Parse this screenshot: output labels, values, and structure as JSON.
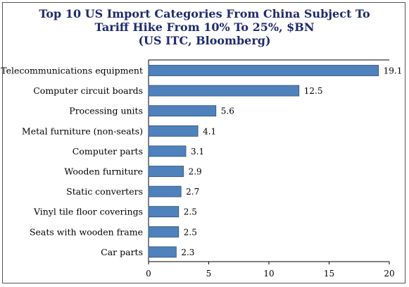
{
  "chart_data": {
    "type": "bar",
    "orientation": "horizontal",
    "title_lines": [
      "Top 10 US Import Categories From China Subject To",
      "Tariff Hike From 10% To 25%, $BN",
      "(US ITC, Bloomberg)"
    ],
    "categories": [
      "Telecommunications equipment",
      "Computer circuit boards",
      "Processing units",
      "Metal furniture (non-seats)",
      "Computer parts",
      "Wooden furniture",
      "Static converters",
      "Vinyl tile floor coverings",
      "Seats with wooden frame",
      "Car parts"
    ],
    "values": [
      19.1,
      12.5,
      5.6,
      4.1,
      3.1,
      2.9,
      2.7,
      2.5,
      2.5,
      2.3
    ],
    "value_labels": [
      "19.1",
      "12.5",
      "5.6",
      "4.1",
      "3.1",
      "2.9",
      "2.7",
      "2.5",
      "2.5",
      "2.3"
    ],
    "xlim": [
      0,
      20
    ],
    "x_ticks": [
      0,
      5,
      10,
      15,
      20
    ],
    "x_tick_labels": [
      "0",
      "5",
      "10",
      "15",
      "20"
    ],
    "grid": false,
    "legend": "none",
    "colors": {
      "bar_fill": "#4f81bd",
      "bar_stroke": "#2c4d75",
      "title": "#1f2a6e",
      "axis": "#000000",
      "frame": "#555555"
    }
  }
}
